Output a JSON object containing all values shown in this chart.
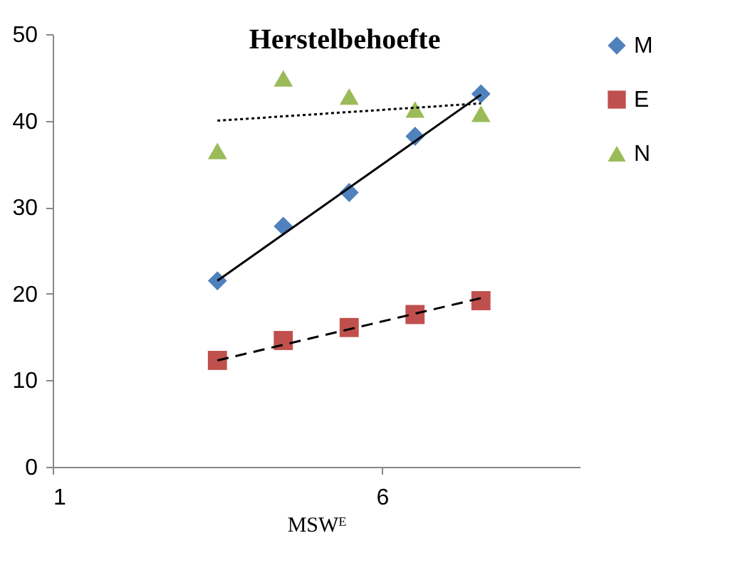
{
  "chart_data": {
    "type": "scatter",
    "title": "Herstelbehoefte",
    "xlabel": "MSWᴱ",
    "xlim": [
      1,
      9
    ],
    "xticks": [
      1,
      6
    ],
    "ylim": [
      0,
      50
    ],
    "yticks": [
      0,
      10,
      20,
      30,
      40,
      50
    ],
    "grid": false,
    "legend": "right",
    "series": [
      {
        "name": "M",
        "color": "#4f81bd",
        "marker": "diamond",
        "x": [
          3.5,
          4.5,
          5.5,
          6.5,
          7.5
        ],
        "values": [
          21.5,
          27.8,
          31.7,
          38.2,
          43.1
        ]
      },
      {
        "name": "E",
        "color": "#c0504d",
        "marker": "square",
        "x": [
          3.5,
          4.5,
          5.5,
          6.5,
          7.5
        ],
        "values": [
          12.3,
          14.6,
          16.1,
          17.6,
          19.2
        ]
      },
      {
        "name": "N",
        "color": "#9bbb59",
        "marker": "triangle",
        "x": [
          3.5,
          4.5,
          5.5,
          6.5,
          7.5
        ],
        "values": [
          36.5,
          44.9,
          42.8,
          41.3,
          40.8
        ]
      },
      {
        "type": "line",
        "color": "#000000",
        "line_style": "solid",
        "x": [
          3.5,
          7.5
        ],
        "values": [
          21.5,
          43.0
        ]
      },
      {
        "type": "line",
        "color": "#000000",
        "line_style": "dashed",
        "x": [
          3.5,
          7.5
        ],
        "values": [
          12.3,
          19.5
        ]
      },
      {
        "type": "line",
        "color": "#000000",
        "line_style": "dotted",
        "x": [
          3.5,
          7.5
        ],
        "values": [
          40.0,
          42.0
        ]
      }
    ]
  }
}
